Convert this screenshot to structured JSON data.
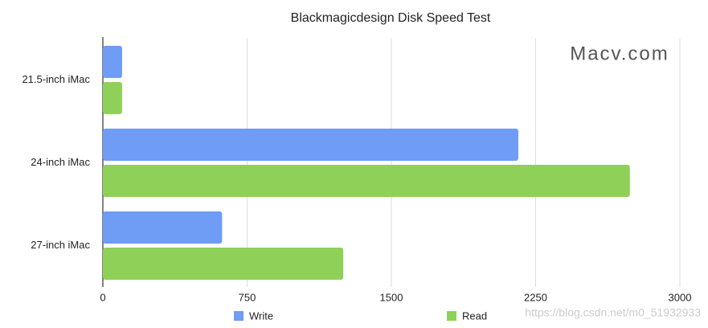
{
  "chart_data": {
    "type": "bar",
    "orientation": "horizontal",
    "title": "Blackmagicdesign Disk Speed Test",
    "categories": [
      "21.5-inch iMac",
      "24-inch iMac",
      "27-inch iMac"
    ],
    "series": [
      {
        "name": "Write",
        "color": "#6f9cf5",
        "values": [
          100,
          2160,
          620
        ]
      },
      {
        "name": "Read",
        "color": "#8fd158",
        "values": [
          100,
          2740,
          1250
        ]
      }
    ],
    "xlim": [
      0,
      3000
    ],
    "xticks": [
      0,
      750,
      1500,
      2250,
      3000
    ],
    "grid": true,
    "legend": "bottom",
    "annotations": [
      "Macv.com",
      "https://blog.csdn.net/m0_51932933"
    ]
  }
}
